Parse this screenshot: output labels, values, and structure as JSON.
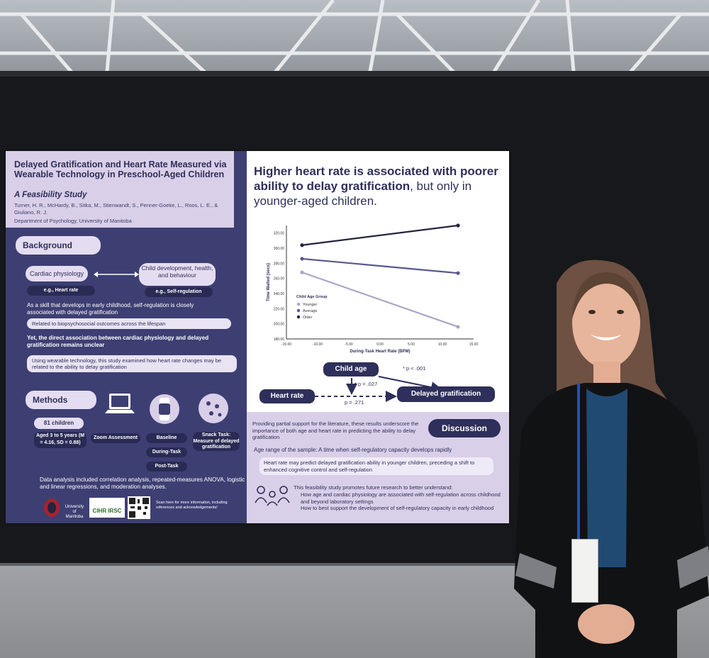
{
  "poster": {
    "title": "Delayed Gratification and Heart Rate Measured via Wearable Technology in Preschool-Aged Children",
    "subtitle": "A Feasibility Study",
    "authors": "Turner, H. R., McHardy, B., Sitka, M., Stienwandt, S., Penner-Goeke, L., Roos, L. E., & Giuliano, R. J.",
    "department": "Department of Psychology, University of Manitoba",
    "background": {
      "heading": "Background",
      "box_left": "Cardiac physiology",
      "box_left_sub": "e.g., Heart rate",
      "box_right": "Child development, health, and behaviour",
      "box_right_sub": "e.g., Self-regulation",
      "text1": "As a skill that develops in early childhood, self-regulation is closely associated with delayed gratification",
      "bullet1": "Related to biopsychosocial outcomes across the lifespan",
      "text2": "Yet, the direct association between cardiac physiology and delayed gratification remains unclear",
      "text3": "Using wearable technology, this study examined how heart rate changes may be related to the ability to delay gratification"
    },
    "methods": {
      "heading": "Methods",
      "children": "81 children",
      "ages": "Aged 3 to 5 years (M = 4.16, SD = 0.88)",
      "zoom": "Zoom Assessment",
      "baseline": "Baseline",
      "during": "During-Task",
      "post": "Post-Task",
      "snack": "Snack Task: Measure of delayed gratification",
      "analysis": "Data analysis included correlation analysis, repeated-measures ANOVA, logistic and linear regressions, and moderation analyses."
    },
    "footer": {
      "uni": "University of Manitoba",
      "cihr": "CIHR IRSC",
      "scan": "Scan here for more information, including references and acknowledgements!"
    },
    "headline_bold": "Higher heart rate is associated with poorer ability to delay gratification",
    "headline_light": ", but only in younger-aged children.",
    "model": {
      "age": "Child age",
      "hr": "Heart rate",
      "dg": "Delayed gratification",
      "p1": "* p < .001",
      "p2": "* p = .027",
      "p3": "p = .271"
    },
    "discussion": {
      "heading": "Discussion",
      "intro": "Providing partial support for the literature, these results underscore the importance of both age and heart rate in predicting the ability to delay gratification",
      "age_range": "Age range of the sample: A time when self-regulatory capacity develops rapidly",
      "bullet": "Heart rate may predict delayed gratification ability in younger children, preceding a shift to enhanced cognitive control and self-regulation",
      "future": "This feasibility study promotes future research to better understand:",
      "f1": "How age and cardiac physiology are associated with self-regulation across childhood and beyond laboratory settings",
      "f2": "How to best support the development of self-regulatory capacity in early childhood"
    }
  },
  "chart_data": {
    "type": "line",
    "xlabel": "During-Task Heart Rate (BPM)",
    "ylabel": "Time Waited (secs)",
    "x_ticks": [
      "-15.00",
      "-10.00",
      "-5.00",
      "0.00",
      "5.00",
      "10.00",
      "15.00"
    ],
    "y_ticks": [
      "180.00",
      "200.00",
      "220.00",
      "240.00",
      "260.00",
      "280.00",
      "300.00",
      "320.00"
    ],
    "xlim": [
      -15,
      15
    ],
    "ylim": [
      180,
      330
    ],
    "legend_title": "Child Age Group",
    "legend_position": "left",
    "x": [
      -12.5,
      12.5
    ],
    "series": [
      {
        "name": "Younger",
        "values": [
          268,
          196
        ],
        "color": "#a9a6c6"
      },
      {
        "name": "Average",
        "values": [
          286,
          267
        ],
        "color": "#55578f"
      },
      {
        "name": "Older",
        "values": [
          304,
          330
        ],
        "color": "#23243f"
      }
    ]
  }
}
